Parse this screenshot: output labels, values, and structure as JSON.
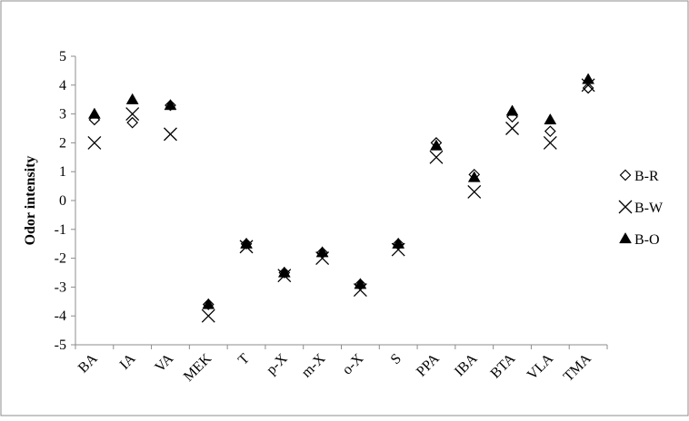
{
  "chart_data": {
    "type": "scatter",
    "title": "",
    "xlabel": "",
    "ylabel": "Odor intensity",
    "ylim": [
      -5,
      5
    ],
    "yticks": [
      "5",
      "4",
      "3",
      "2",
      "1",
      "0",
      "-1",
      "-2",
      "-3",
      "-4",
      "-5"
    ],
    "categories": [
      "BA",
      "IA",
      "VA",
      "MEK",
      "T",
      "p-X",
      "m-X",
      "o-X",
      "S",
      "PPA",
      "IBA",
      "BTA",
      "VLA",
      "TMA"
    ],
    "legend_position": "right",
    "grid": false,
    "series": [
      {
        "name": "B-R",
        "marker": "diamond-open",
        "color": "#000000",
        "values": [
          2.8,
          2.7,
          3.3,
          -3.6,
          -1.5,
          -2.5,
          -1.8,
          -2.9,
          -1.5,
          2.0,
          0.9,
          2.9,
          2.4,
          3.9
        ]
      },
      {
        "name": "B-W",
        "marker": "x",
        "color": "#000000",
        "values": [
          2.0,
          3.0,
          2.3,
          -4.0,
          -1.6,
          -2.6,
          -2.0,
          -3.1,
          -1.7,
          1.5,
          0.3,
          2.5,
          2.0,
          4.0
        ]
      },
      {
        "name": "B-O",
        "marker": "triangle-filled",
        "color": "#000000",
        "values": [
          3.0,
          3.5,
          3.3,
          -3.6,
          -1.5,
          -2.5,
          -1.8,
          -2.9,
          -1.5,
          1.9,
          0.8,
          3.1,
          2.8,
          4.2
        ]
      }
    ]
  }
}
